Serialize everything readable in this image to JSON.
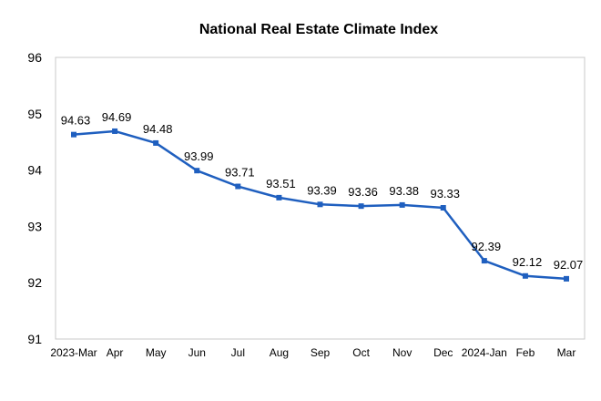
{
  "chart_data": {
    "type": "line",
    "title": "National Real Estate Climate Index",
    "xlabel": "",
    "ylabel": "",
    "categories": [
      "2023-Mar",
      "Apr",
      "May",
      "Jun",
      "Jul",
      "Aug",
      "Sep",
      "Oct",
      "Nov",
      "Dec",
      "2024-Jan",
      "Feb",
      "Mar"
    ],
    "series": [
      {
        "values": [
          94.63,
          94.69,
          94.48,
          93.99,
          93.71,
          93.51,
          93.39,
          93.36,
          93.38,
          93.33,
          92.39,
          92.12,
          92.07
        ],
        "color": "#1f5fbf"
      }
    ],
    "data_labels": [
      "94.63",
      "94.69",
      "94.48",
      "93.99",
      "93.71",
      "93.51",
      "93.39",
      "93.36",
      "93.38",
      "93.33",
      "92.39",
      "92.12",
      "92.07"
    ],
    "yticks": [
      "91",
      "92",
      "93",
      "94",
      "95",
      "96"
    ],
    "ylim": [
      91,
      96
    ],
    "grid": false,
    "legend": "none"
  }
}
